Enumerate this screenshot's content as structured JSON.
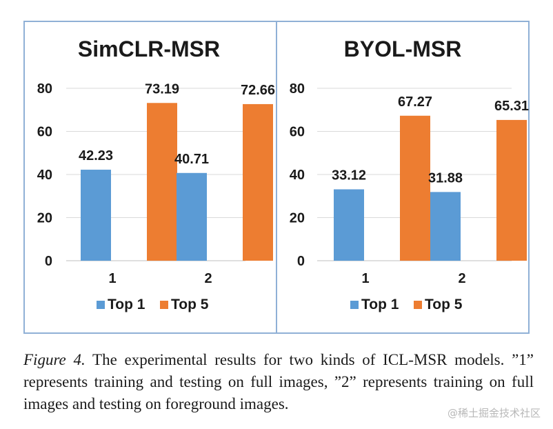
{
  "chart_data": [
    {
      "type": "bar",
      "title": "SimCLR-MSR",
      "categories": [
        "1",
        "2"
      ],
      "series": [
        {
          "name": "Top 1",
          "values": [
            42.23,
            40.71
          ],
          "color": "#5b9bd5"
        },
        {
          "name": "Top 5",
          "values": [
            73.19,
            72.66
          ],
          "color": "#ed7d31"
        }
      ],
      "yticks": [
        "0",
        "20",
        "40",
        "60",
        "80"
      ],
      "ylim": [
        0,
        80
      ],
      "grid": true,
      "legend_position": "bottom"
    },
    {
      "type": "bar",
      "title": "BYOL-MSR",
      "categories": [
        "1",
        "2"
      ],
      "series": [
        {
          "name": "Top 1",
          "values": [
            33.12,
            31.88
          ],
          "color": "#5b9bd5"
        },
        {
          "name": "Top 5",
          "values": [
            67.27,
            65.31
          ],
          "color": "#ed7d31"
        }
      ],
      "yticks": [
        "0",
        "20",
        "40",
        "60",
        "80"
      ],
      "ylim": [
        0,
        80
      ],
      "grid": true,
      "legend_position": "bottom"
    }
  ],
  "caption": {
    "label": "Figure 4.",
    "text": " The experimental results for two kinds of ICL-MSR models. ”1” represents training and testing on full images, ”2” represents training on full images and testing on foreground images."
  },
  "watermark": "@稀土掘金技术社区"
}
